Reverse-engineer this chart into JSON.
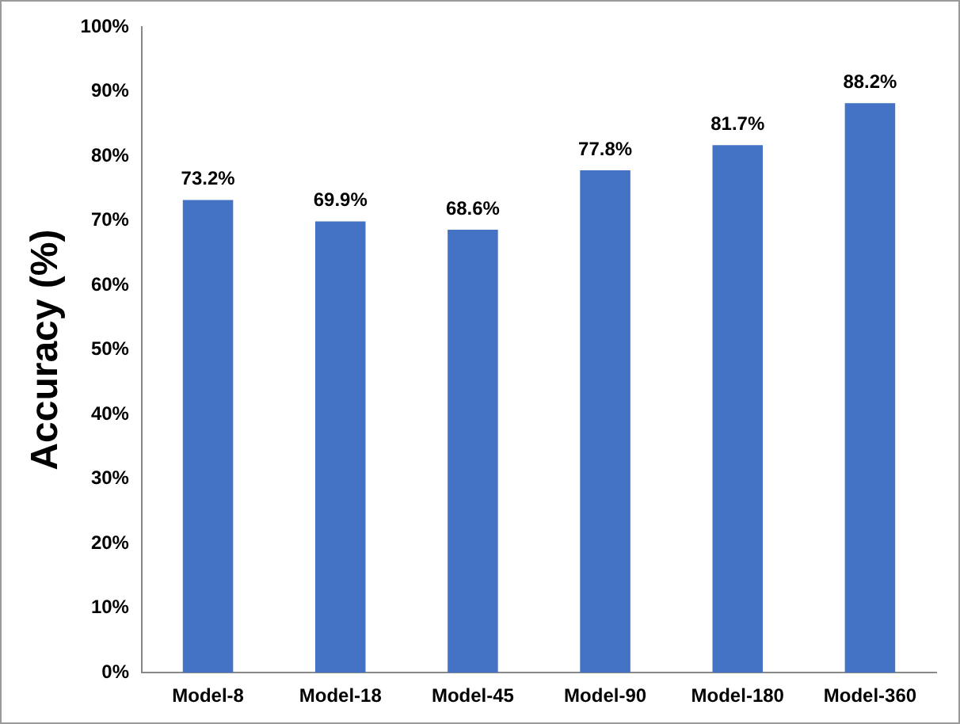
{
  "chart_data": {
    "type": "bar",
    "ylabel": "Accuracy (%)",
    "categories": [
      "Model-8",
      "Model-18",
      "Model-45",
      "Model-90",
      "Model-180",
      "Model-360"
    ],
    "values": [
      73.2,
      69.9,
      68.6,
      77.8,
      81.7,
      88.2
    ],
    "value_labels": [
      "73.2%",
      "69.9%",
      "68.6%",
      "77.8%",
      "81.7%",
      "88.2%"
    ],
    "color": "#4472c4",
    "ylim": [
      0,
      100
    ],
    "yticks": [
      {
        "value": 0,
        "label": "0%"
      },
      {
        "value": 10,
        "label": "10%"
      },
      {
        "value": 20,
        "label": "20%"
      },
      {
        "value": 30,
        "label": "30%"
      },
      {
        "value": 40,
        "label": "40%"
      },
      {
        "value": 50,
        "label": "50%"
      },
      {
        "value": 60,
        "label": "60%"
      },
      {
        "value": 70,
        "label": "70%"
      },
      {
        "value": 80,
        "label": "80%"
      },
      {
        "value": 90,
        "label": "90%"
      },
      {
        "value": 100,
        "label": "100%"
      }
    ],
    "grid": false,
    "legend": false
  }
}
